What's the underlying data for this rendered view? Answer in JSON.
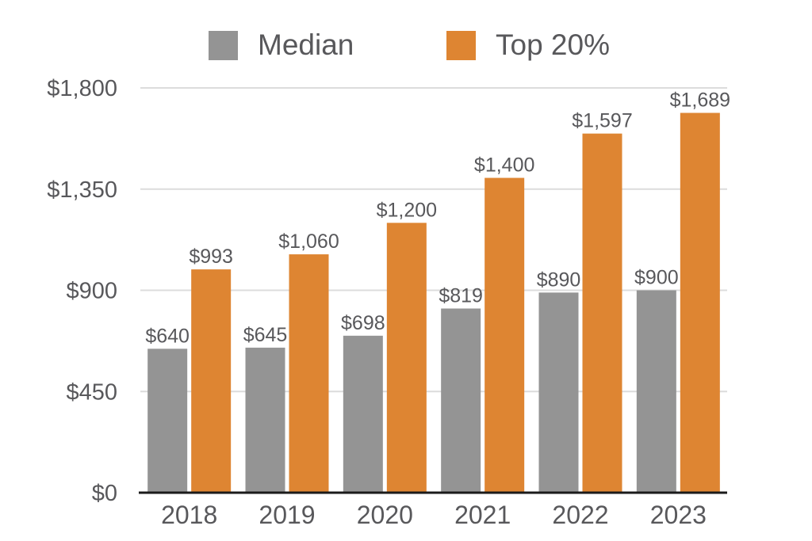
{
  "legend": {
    "items": [
      {
        "label": "Median",
        "color": "#949494"
      },
      {
        "label": "Top 20%",
        "color": "#DE8532"
      }
    ]
  },
  "chart_data": {
    "type": "bar",
    "title": "",
    "xlabel": "",
    "ylabel": "",
    "grid": true,
    "legend_position": "top",
    "categories": [
      "2018",
      "2019",
      "2020",
      "2021",
      "2022",
      "2023"
    ],
    "series": [
      {
        "name": "Median",
        "color": "#949494",
        "values": [
          640,
          645,
          698,
          819,
          890,
          900
        ],
        "labels": [
          "$640",
          "$645",
          "$698",
          "$819",
          "$890",
          "$900"
        ]
      },
      {
        "name": "Top 20%",
        "color": "#DE8532",
        "values": [
          993,
          1060,
          1200,
          1400,
          1597,
          1689
        ],
        "labels": [
          "$993",
          "$1,060",
          "$1,200",
          "$1,400",
          "$1,597",
          "$1,689"
        ]
      }
    ],
    "y_axis": {
      "max": 1800,
      "ticks": [
        {
          "value": 0,
          "label": "$0"
        },
        {
          "value": 450,
          "label": "$450"
        },
        {
          "value": 900,
          "label": "$900"
        },
        {
          "value": 1350,
          "label": "$1,350"
        },
        {
          "value": 1800,
          "label": "$1,800"
        }
      ]
    }
  },
  "colors": {
    "text": "#58585B",
    "gridline": "#DCDCDC",
    "axis_line": "#1B1B1B",
    "background": "#FFFFFF"
  }
}
